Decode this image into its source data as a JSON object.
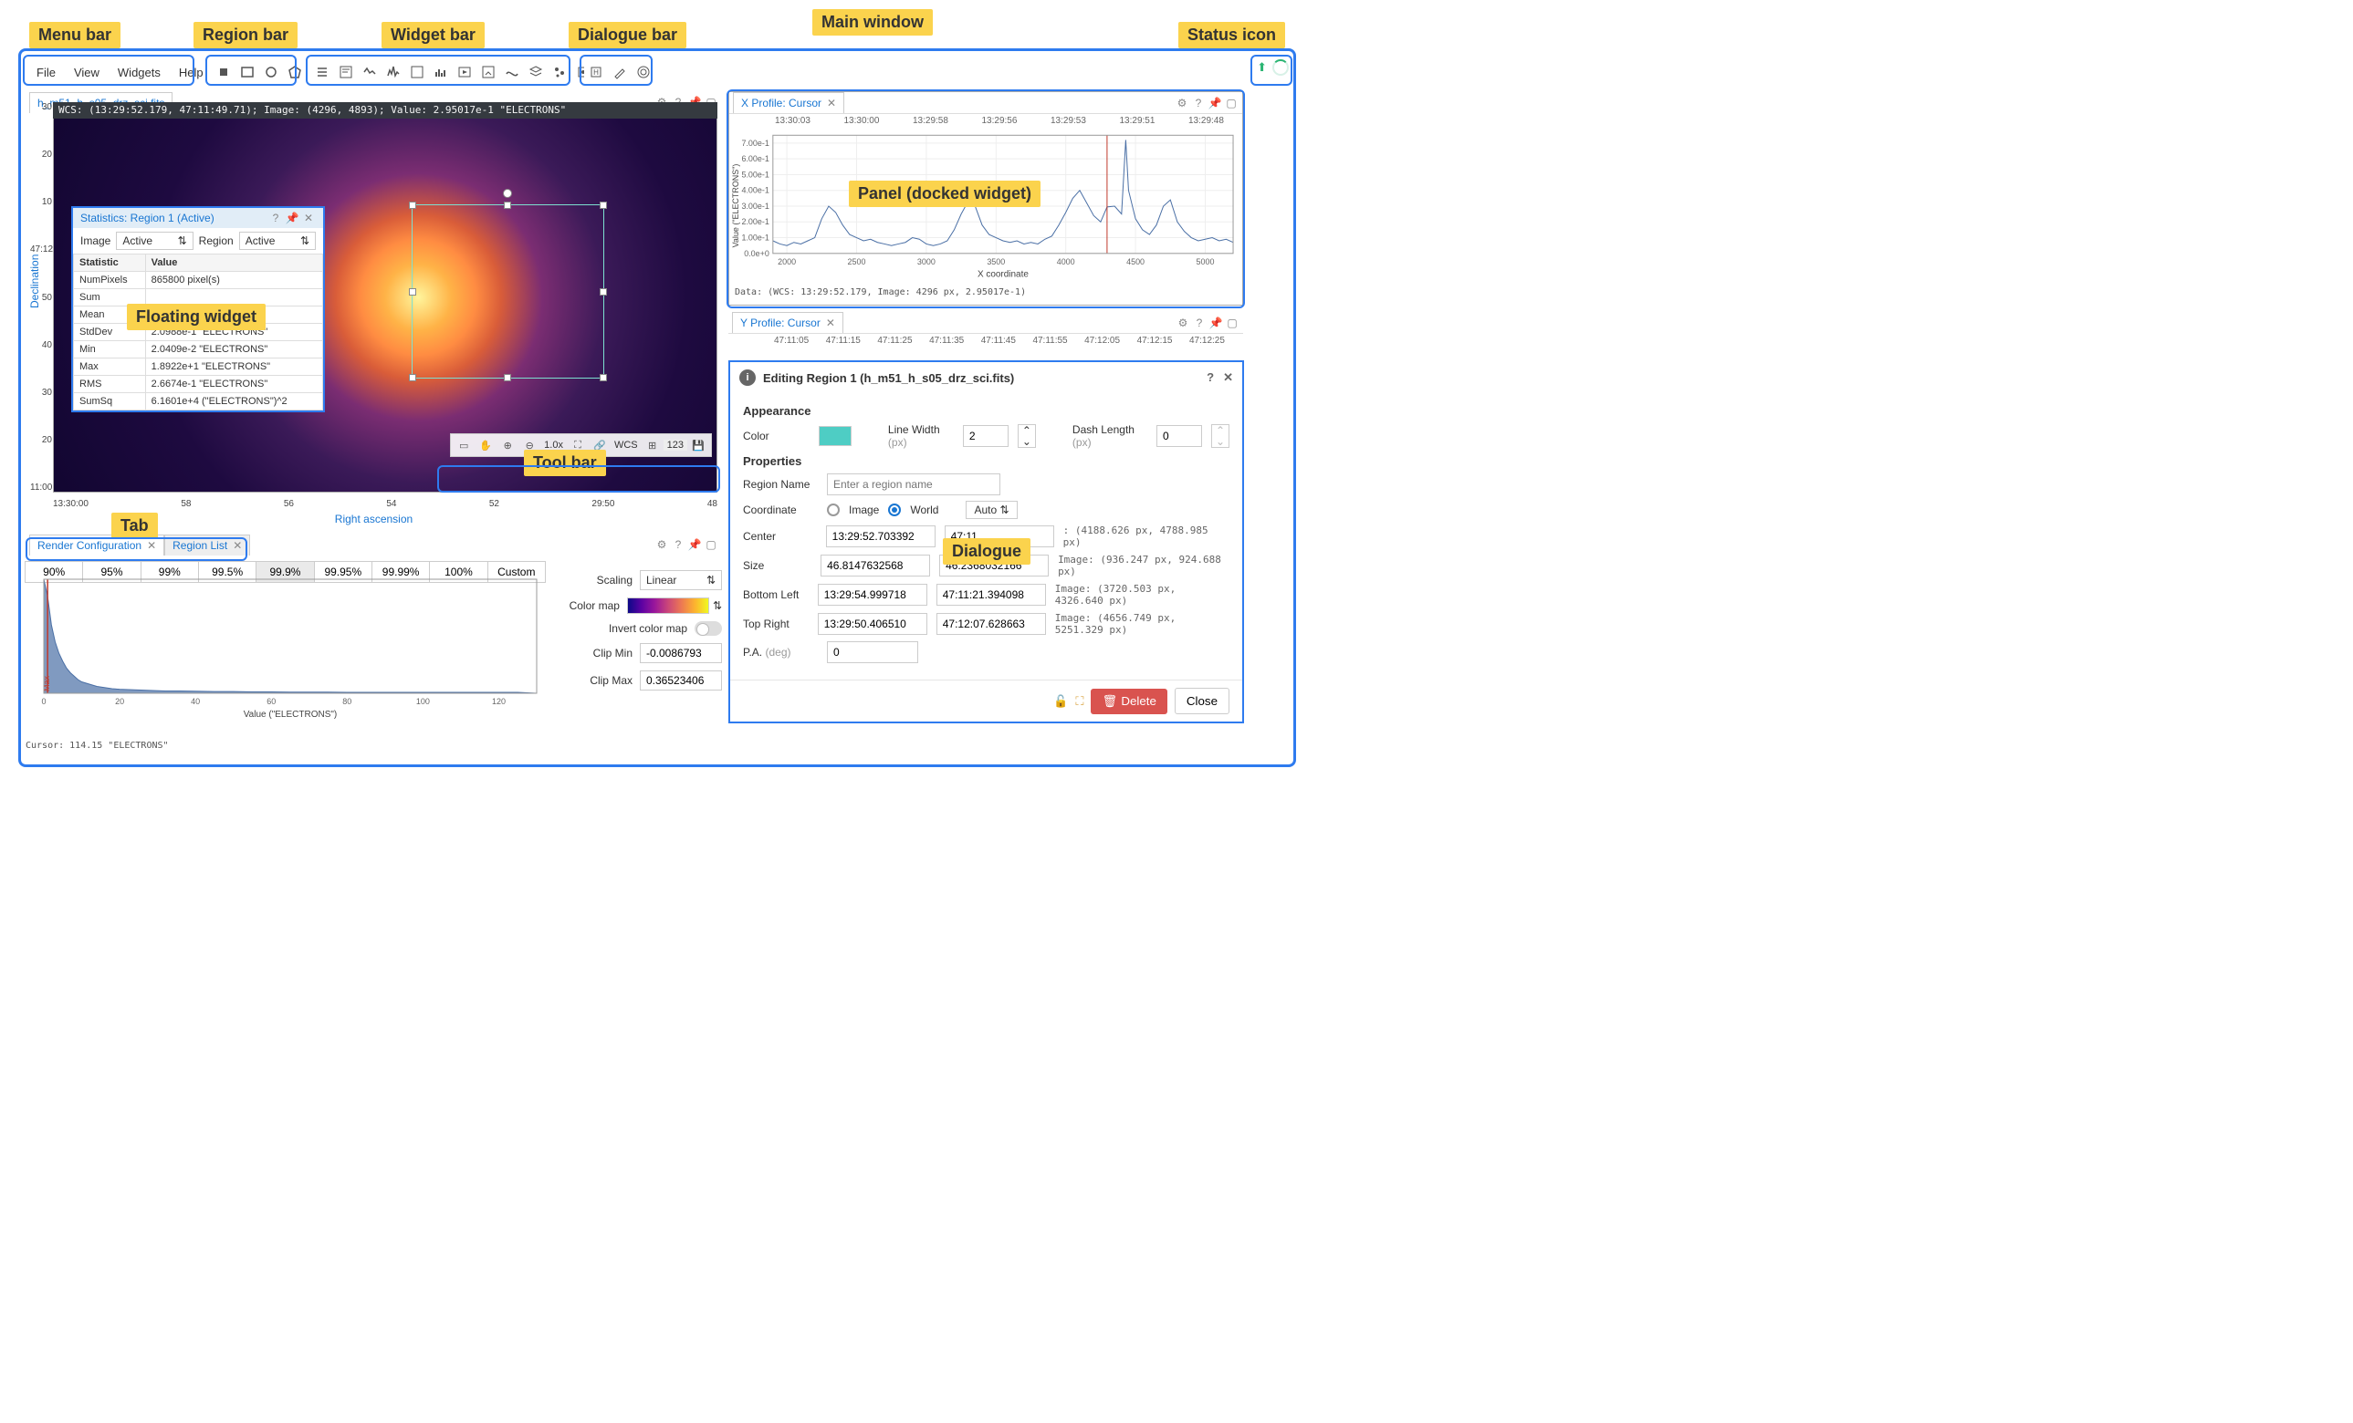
{
  "callouts": {
    "menu_bar": "Menu bar",
    "region_bar": "Region bar",
    "widget_bar": "Widget bar",
    "dialogue_bar": "Dialogue bar",
    "main_window": "Main window",
    "status_icon": "Status icon",
    "floating_widget": "Floating widget",
    "tool_bar": "Tool bar",
    "tab": "Tab",
    "panel": "Panel (docked widget)",
    "dialogue": "Dialogue"
  },
  "menu": {
    "items": [
      "File",
      "View",
      "Widgets",
      "Help"
    ]
  },
  "image_viewer": {
    "tab": "h_m51_h_s05_drz_sci.fits",
    "cursor_info": "WCS: (13:29:52.179, 47:11:49.71); Image: (4296, 4893); Value:  2.95017e-1 \"ELECTRONS\"",
    "y_label": "Declination",
    "x_label": "Right ascension",
    "y_ticks": [
      "30",
      "20",
      "10",
      "47:12:00",
      "50",
      "40",
      "30",
      "20",
      "11:00"
    ],
    "x_ticks": [
      "13:30:00",
      "58",
      "56",
      "54",
      "52",
      "29:50",
      "48"
    ],
    "toolbar_zoom": "1.0x",
    "toolbar_wcs": "WCS",
    "toolbar_num": "123"
  },
  "stats": {
    "title": "Statistics: Region 1 (Active)",
    "image_label": "Image",
    "image_value": "Active",
    "region_label": "Region",
    "region_value": "Active",
    "headers": [
      "Statistic",
      "Value"
    ],
    "rows": [
      [
        "NumPixels",
        "865800 pixel(s)"
      ],
      [
        "Sum",
        ""
      ],
      [
        "Mean",
        ""
      ],
      [
        "StdDev",
        "2.0988e-1 \"ELECTRONS\""
      ],
      [
        "Min",
        "2.0409e-2 \"ELECTRONS\""
      ],
      [
        "Max",
        "1.8922e+1 \"ELECTRONS\""
      ],
      [
        "RMS",
        "2.6674e-1 \"ELECTRONS\""
      ],
      [
        "SumSq",
        "6.1601e+4 (\"ELECTRONS\")^2"
      ]
    ]
  },
  "x_profile": {
    "title": "X Profile: Cursor",
    "x_label": "X coordinate",
    "y_label": "Value (\"ELECTRONS\")",
    "top_ticks": [
      "13:30:03",
      "13:30:00",
      "13:29:58",
      "13:29:56",
      "13:29:53",
      "13:29:51",
      "13:29:48"
    ],
    "x_ticks": [
      "2000",
      "2500",
      "3000",
      "3500",
      "4000",
      "4500",
      "5000"
    ],
    "y_ticks": [
      "0.0e+0",
      "1.00e-1",
      "2.00e-1",
      "3.00e-1",
      "4.00e-1",
      "5.00e-1",
      "6.00e-1",
      "7.00e-1"
    ],
    "cursor": "Data: (WCS: 13:29:52.179, Image: 4296 px, 2.95017e-1)",
    "series_color": "#4a6fa5",
    "cursor_line_color": "#c0392b",
    "xlim": [
      1900,
      5200
    ],
    "ylim": [
      0,
      0.75
    ],
    "data": [
      [
        1900,
        0.08
      ],
      [
        1950,
        0.06
      ],
      [
        2000,
        0.05
      ],
      [
        2050,
        0.07
      ],
      [
        2100,
        0.06
      ],
      [
        2150,
        0.08
      ],
      [
        2200,
        0.1
      ],
      [
        2250,
        0.22
      ],
      [
        2300,
        0.3
      ],
      [
        2350,
        0.26
      ],
      [
        2400,
        0.18
      ],
      [
        2450,
        0.12
      ],
      [
        2500,
        0.1
      ],
      [
        2550,
        0.08
      ],
      [
        2600,
        0.09
      ],
      [
        2650,
        0.07
      ],
      [
        2700,
        0.06
      ],
      [
        2750,
        0.05
      ],
      [
        2800,
        0.06
      ],
      [
        2850,
        0.07
      ],
      [
        2900,
        0.1
      ],
      [
        2950,
        0.09
      ],
      [
        3000,
        0.06
      ],
      [
        3050,
        0.05
      ],
      [
        3100,
        0.06
      ],
      [
        3150,
        0.08
      ],
      [
        3200,
        0.15
      ],
      [
        3250,
        0.25
      ],
      [
        3300,
        0.33
      ],
      [
        3350,
        0.3
      ],
      [
        3400,
        0.18
      ],
      [
        3450,
        0.12
      ],
      [
        3500,
        0.1
      ],
      [
        3550,
        0.08
      ],
      [
        3600,
        0.07
      ],
      [
        3650,
        0.08
      ],
      [
        3700,
        0.06
      ],
      [
        3750,
        0.07
      ],
      [
        3800,
        0.06
      ],
      [
        3850,
        0.09
      ],
      [
        3900,
        0.11
      ],
      [
        3950,
        0.18
      ],
      [
        4000,
        0.26
      ],
      [
        4050,
        0.35
      ],
      [
        4100,
        0.4
      ],
      [
        4150,
        0.32
      ],
      [
        4200,
        0.24
      ],
      [
        4250,
        0.2
      ],
      [
        4296,
        0.295
      ],
      [
        4350,
        0.3
      ],
      [
        4400,
        0.25
      ],
      [
        4430,
        0.72
      ],
      [
        4450,
        0.4
      ],
      [
        4500,
        0.22
      ],
      [
        4550,
        0.15
      ],
      [
        4600,
        0.12
      ],
      [
        4650,
        0.18
      ],
      [
        4700,
        0.3
      ],
      [
        4750,
        0.34
      ],
      [
        4800,
        0.2
      ],
      [
        4850,
        0.14
      ],
      [
        4900,
        0.1
      ],
      [
        4950,
        0.08
      ],
      [
        5000,
        0.09
      ],
      [
        5050,
        0.1
      ],
      [
        5100,
        0.08
      ],
      [
        5150,
        0.09
      ],
      [
        5200,
        0.07
      ]
    ],
    "cursor_x": 4296
  },
  "y_profile": {
    "title": "Y Profile: Cursor",
    "top_ticks": [
      "47:11:05",
      "47:11:15",
      "47:11:25",
      "47:11:35",
      "47:11:45",
      "47:11:55",
      "47:12:05",
      "47:12:15",
      "47:12:25"
    ]
  },
  "render": {
    "tabs": [
      "Render Configuration",
      "Region List"
    ],
    "active_tab": 0,
    "clips": [
      "90%",
      "95%",
      "99%",
      "99.5%",
      "99.9%",
      "99.95%",
      "99.99%",
      "100%",
      "Custom"
    ],
    "active_clip": 4,
    "scaling_label": "Scaling",
    "scaling_value": "Linear",
    "colormap_label": "Color map",
    "invert_label": "Invert color map",
    "clipmin_label": "Clip Min",
    "clipmin_value": "-0.0086793",
    "clipmax_label": "Clip Max",
    "clipmax_value": "0.36523406",
    "x_label": "Value (\"ELECTRONS\")",
    "x_ticks": [
      "0",
      "20",
      "40",
      "60",
      "80",
      "100",
      "120"
    ],
    "cursor_text": "Cursor: 114.15 \"ELECTRONS\"",
    "max_label": "Max",
    "hist_color": "#4a6fa5",
    "hist_xlim": [
      0,
      130
    ],
    "hist_data": [
      [
        0,
        1.0
      ],
      [
        1,
        0.85
      ],
      [
        2,
        0.6
      ],
      [
        3,
        0.45
      ],
      [
        4,
        0.35
      ],
      [
        5,
        0.28
      ],
      [
        6,
        0.22
      ],
      [
        7,
        0.18
      ],
      [
        8,
        0.15
      ],
      [
        9,
        0.12
      ],
      [
        10,
        0.1
      ],
      [
        12,
        0.08
      ],
      [
        14,
        0.06
      ],
      [
        16,
        0.05
      ],
      [
        18,
        0.04
      ],
      [
        20,
        0.035
      ],
      [
        24,
        0.03
      ],
      [
        28,
        0.025
      ],
      [
        32,
        0.02
      ],
      [
        36,
        0.02
      ],
      [
        40,
        0.018
      ],
      [
        45,
        0.015
      ],
      [
        50,
        0.015
      ],
      [
        55,
        0.012
      ],
      [
        60,
        0.012
      ],
      [
        65,
        0.01
      ],
      [
        70,
        0.01
      ],
      [
        75,
        0.01
      ],
      [
        80,
        0.008
      ],
      [
        85,
        0.008
      ],
      [
        90,
        0.008
      ],
      [
        95,
        0.008
      ],
      [
        100,
        0.008
      ],
      [
        105,
        0.008
      ],
      [
        110,
        0.008
      ],
      [
        115,
        0.008
      ],
      [
        120,
        0.008
      ],
      [
        125,
        0.008
      ]
    ]
  },
  "dialogue": {
    "title": "Editing Region 1 (h_m51_h_s05_drz_sci.fits)",
    "appearance_header": "Appearance",
    "color_label": "Color",
    "color_value": "#4ecdc4",
    "linewidth_label": "Line Width",
    "linewidth_unit": "(px)",
    "linewidth_value": "2",
    "dashlen_label": "Dash Length",
    "dashlen_unit": "(px)",
    "dashlen_value": "0",
    "properties_header": "Properties",
    "regionname_label": "Region Name",
    "regionname_placeholder": "Enter a region name",
    "coord_label": "Coordinate",
    "coord_image": "Image",
    "coord_world": "World",
    "coord_select": "Auto",
    "rows": [
      {
        "label": "Center",
        "a": "13:29:52.703392",
        "b": "47:11",
        "info": ": (4188.626 px, 4788.985 px)"
      },
      {
        "label": "Size",
        "a": "46.8147632568\"",
        "b": "46.2368032166\"",
        "info": "Image: (936.247 px, 924.688 px)"
      },
      {
        "label": "Bottom Left",
        "a": "13:29:54.999718",
        "b": "47:11:21.394098",
        "info": "Image: (3720.503 px, 4326.640 px)"
      },
      {
        "label": "Top Right",
        "a": "13:29:50.406510",
        "b": "47:12:07.628663",
        "info": "Image: (4656.749 px, 5251.329 px)"
      }
    ],
    "pa_label": "P.A.",
    "pa_unit": "(deg)",
    "pa_value": "0",
    "delete_label": "Delete",
    "close_label": "Close"
  }
}
